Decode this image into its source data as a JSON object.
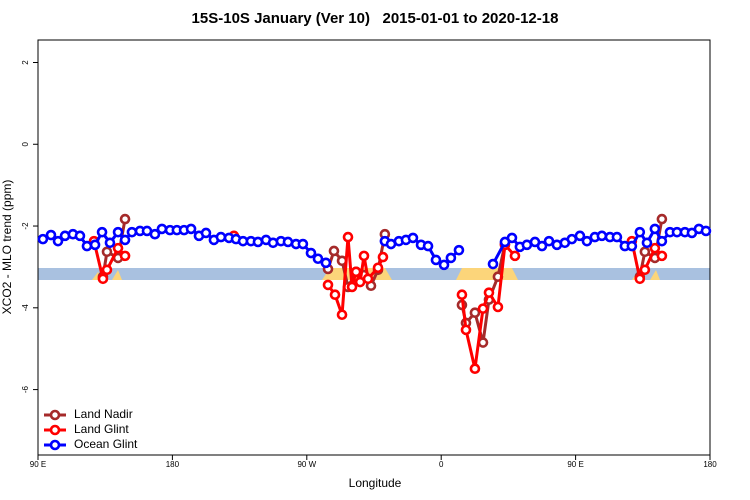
{
  "chart_data": {
    "type": "line",
    "title": "15S-10S January (Ver 10)   2015-01-01 to 2020-12-18",
    "xlabel": "Longitude",
    "ylabel": "XCO2 - MLO trend (ppm)",
    "xlim": [
      90,
      540
    ],
    "ylim": [
      -7.6,
      2.55
    ],
    "xticks": [
      {
        "value": 90,
        "label": "90 E"
      },
      {
        "value": 180,
        "label": "180"
      },
      {
        "value": 270,
        "label": "90 W"
      },
      {
        "value": 360,
        "label": "0"
      },
      {
        "value": 450,
        "label": "90 E"
      },
      {
        "value": 540,
        "label": "180"
      }
    ],
    "yticks": [
      2,
      0,
      -2,
      -4,
      -6
    ],
    "legend": "bottom-left",
    "series": [
      {
        "name": "Land Nadir",
        "color": "#a52a2a",
        "x": [
          133.5,
          136.2,
          143.6,
          148.3,
          null,
          284.2,
          288.2,
          293.6,
          297.6,
          303,
          308.3,
          313,
          317.7,
          322.3,
          null,
          373.9,
          376.6,
          382.6,
          388,
          392,
          398,
          402.7,
          null,
          493,
          496.4,
          503.1,
          507.8
        ],
        "values": [
          -3.24,
          -2.63,
          -2.78,
          -1.83,
          null,
          -3.05,
          -2.61,
          -2.85,
          -3.49,
          -3.12,
          -3.2,
          -3.46,
          -3.07,
          -2.2,
          null,
          -3.93,
          -4.37,
          -4.12,
          -4.85,
          -3.8,
          -3.24,
          -2.44,
          null,
          -3.24,
          -2.63,
          -2.78,
          -1.83
        ]
      },
      {
        "name": "Land Glint",
        "color": "#ff0000",
        "x": [
          127.5,
          133.5,
          136.2,
          143.6,
          148.3,
          null,
          221.2,
          null,
          284.2,
          288.9,
          293.6,
          297.6,
          300.3,
          303,
          305.7,
          308.3,
          311,
          317.7,
          321,
          null,
          373.9,
          376.6,
          382.6,
          388,
          392,
          398,
          402.7,
          409.4,
          null,
          487.7,
          493,
          496.4,
          503.1,
          507.8
        ],
        "values": [
          -2.37,
          -3.29,
          -3.07,
          -2.54,
          -2.73,
          null,
          -2.24,
          null,
          -3.44,
          -3.68,
          -4.17,
          -2.27,
          -3.49,
          -3.12,
          -3.37,
          -2.73,
          -3.29,
          -3.02,
          -2.76,
          null,
          -3.68,
          -4.54,
          -5.49,
          -4.02,
          -3.63,
          -3.98,
          -2.46,
          -2.73,
          null,
          -2.37,
          -3.29,
          -3.07,
          -2.54,
          -2.73
        ]
      },
      {
        "name": "Ocean Glint",
        "color": "#0000ff",
        "x": [
          93.3,
          98.7,
          103.4,
          108.1,
          113.4,
          118.1,
          122.8,
          128.2,
          132.9,
          138.2,
          143.6,
          148.3,
          152.9,
          158.3,
          163,
          168.3,
          173,
          178.4,
          183,
          187.8,
          192.5,
          197.8,
          202.5,
          207.8,
          212.5,
          217.9,
          222.6,
          227.3,
          232.6,
          237.3,
          242.7,
          247.4,
          252.7,
          257.4,
          262.8,
          267.4,
          272.8,
          277.5,
          282.8,
          null,
          322.3,
          326.4,
          331.7,
          336.4,
          341.1,
          346.5,
          351.2,
          356.5,
          361.9,
          366.5,
          371.9,
          null,
          394.7,
          402.7,
          407.4,
          412.7,
          417.4,
          422.8,
          427.5,
          432.2,
          437.5,
          442.8,
          447.5,
          452.9,
          457.6,
          462.9,
          467.6,
          473,
          477.7,
          483,
          487.7,
          493,
          497.8,
          503.1,
          507.8,
          513.2,
          517.9,
          523.2,
          527.9,
          532.6,
          537.3
        ],
        "values": [
          -2.32,
          -2.22,
          -2.37,
          -2.24,
          -2.2,
          -2.24,
          -2.49,
          -2.46,
          -2.15,
          -2.41,
          -2.15,
          -2.34,
          -2.15,
          -2.12,
          -2.12,
          -2.2,
          -2.07,
          -2.1,
          -2.1,
          -2.1,
          -2.07,
          -2.24,
          -2.17,
          -2.34,
          -2.27,
          -2.29,
          -2.32,
          -2.37,
          -2.37,
          -2.39,
          -2.34,
          -2.41,
          -2.37,
          -2.39,
          -2.44,
          -2.44,
          -2.66,
          -2.8,
          -2.9,
          null,
          -2.37,
          -2.44,
          -2.37,
          -2.34,
          -2.29,
          -2.46,
          -2.49,
          -2.83,
          -2.95,
          -2.78,
          -2.59,
          null,
          -2.93,
          -2.39,
          -2.29,
          -2.51,
          -2.46,
          -2.39,
          -2.49,
          -2.37,
          -2.46,
          -2.41,
          -2.32,
          -2.24,
          -2.37,
          -2.27,
          -2.24,
          -2.27,
          -2.27,
          -2.49,
          -2.49,
          -2.15,
          -2.41,
          -2.07,
          -2.37,
          -2.15,
          -2.15,
          -2.15,
          -2.17,
          -2.07,
          -2.12
        ]
      }
    ]
  }
}
